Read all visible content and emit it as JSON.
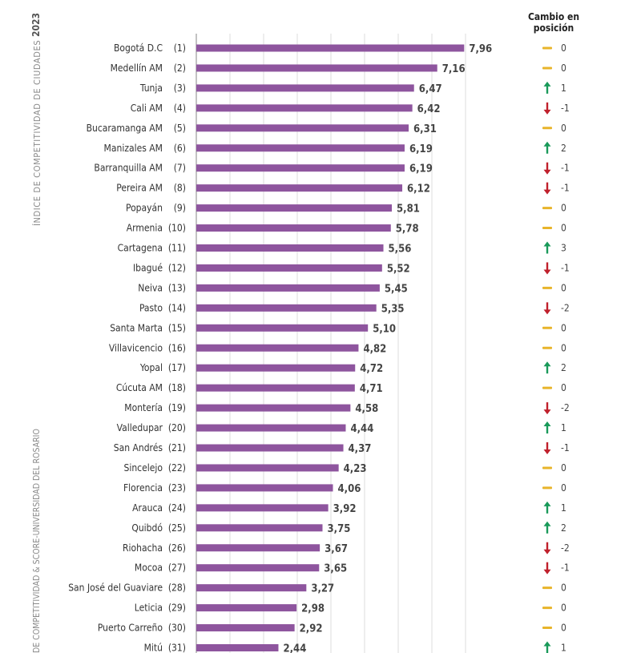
{
  "side": {
    "year": "2023",
    "title": "ÍNDICE DE COMPETITIVIDAD DE CIUDADES",
    "source": "DE COMPETITIVIDAD & SCORE-UNIVERSIDAD DEL ROSARIO"
  },
  "change_header": {
    "line1": "Cambio en",
    "line2": "posición"
  },
  "colors": {
    "bar": "#8e559e",
    "up": "#1a9a5a",
    "down": "#c0202c",
    "same": "#e8b42a"
  },
  "chart_data": {
    "type": "bar",
    "orientation": "horizontal",
    "xlim": [
      0,
      8
    ],
    "grid": true,
    "categories": [
      "Bogotá D.C",
      "Medellín AM",
      "Tunja",
      "Cali AM",
      "Bucaramanga AM",
      "Manizales AM",
      "Barranquilla AM",
      "Pereira AM",
      "Popayán",
      "Armenia",
      "Cartagena",
      "Ibagué",
      "Neiva",
      "Pasto",
      "Santa Marta",
      "Villavicencio",
      "Yopal",
      "Cúcuta AM",
      "Montería",
      "Valledupar",
      "San Andrés",
      "Sincelejo",
      "Florencia",
      "Arauca",
      "Quibdó",
      "Riohacha",
      "Mocoa",
      "San José del Guaviare",
      "Leticia",
      "Puerto Carreño",
      "Mitú"
    ],
    "ranks": [
      "(1)",
      "(2)",
      "(3)",
      "(4)",
      "(5)",
      "(6)",
      "(7)",
      "(8)",
      "(9)",
      "(10)",
      "(11)",
      "(12)",
      "(13)",
      "(14)",
      "(15)",
      "(16)",
      "(17)",
      "(18)",
      "(19)",
      "(20)",
      "(21)",
      "(22)",
      "(23)",
      "(24)",
      "(25)",
      "(26)",
      "(27)",
      "(28)",
      "(29)",
      "(30)",
      "(31)"
    ],
    "values": [
      7.96,
      7.16,
      6.47,
      6.42,
      6.31,
      6.19,
      6.19,
      6.12,
      5.81,
      5.78,
      5.56,
      5.52,
      5.45,
      5.35,
      5.1,
      4.82,
      4.72,
      4.71,
      4.58,
      4.44,
      4.37,
      4.23,
      4.06,
      3.92,
      3.75,
      3.67,
      3.65,
      3.27,
      2.98,
      2.92,
      2.44
    ],
    "value_labels": [
      "7,96",
      "7,16",
      "6,47",
      "6,42",
      "6,31",
      "6,19",
      "6,19",
      "6,12",
      "5,81",
      "5,78",
      "5,56",
      "5,52",
      "5,45",
      "5,35",
      "5,10",
      "4,82",
      "4,72",
      "4,71",
      "4,58",
      "4,44",
      "4,37",
      "4,23",
      "4,06",
      "3,92",
      "3,75",
      "3,67",
      "3,65",
      "3,27",
      "2,98",
      "2,92",
      "2,44"
    ],
    "position_change": [
      0,
      0,
      1,
      -1,
      0,
      2,
      -1,
      -1,
      0,
      0,
      3,
      -1,
      0,
      -2,
      0,
      0,
      2,
      0,
      -2,
      1,
      -1,
      0,
      0,
      1,
      2,
      -2,
      -1,
      0,
      0,
      0,
      1
    ]
  }
}
